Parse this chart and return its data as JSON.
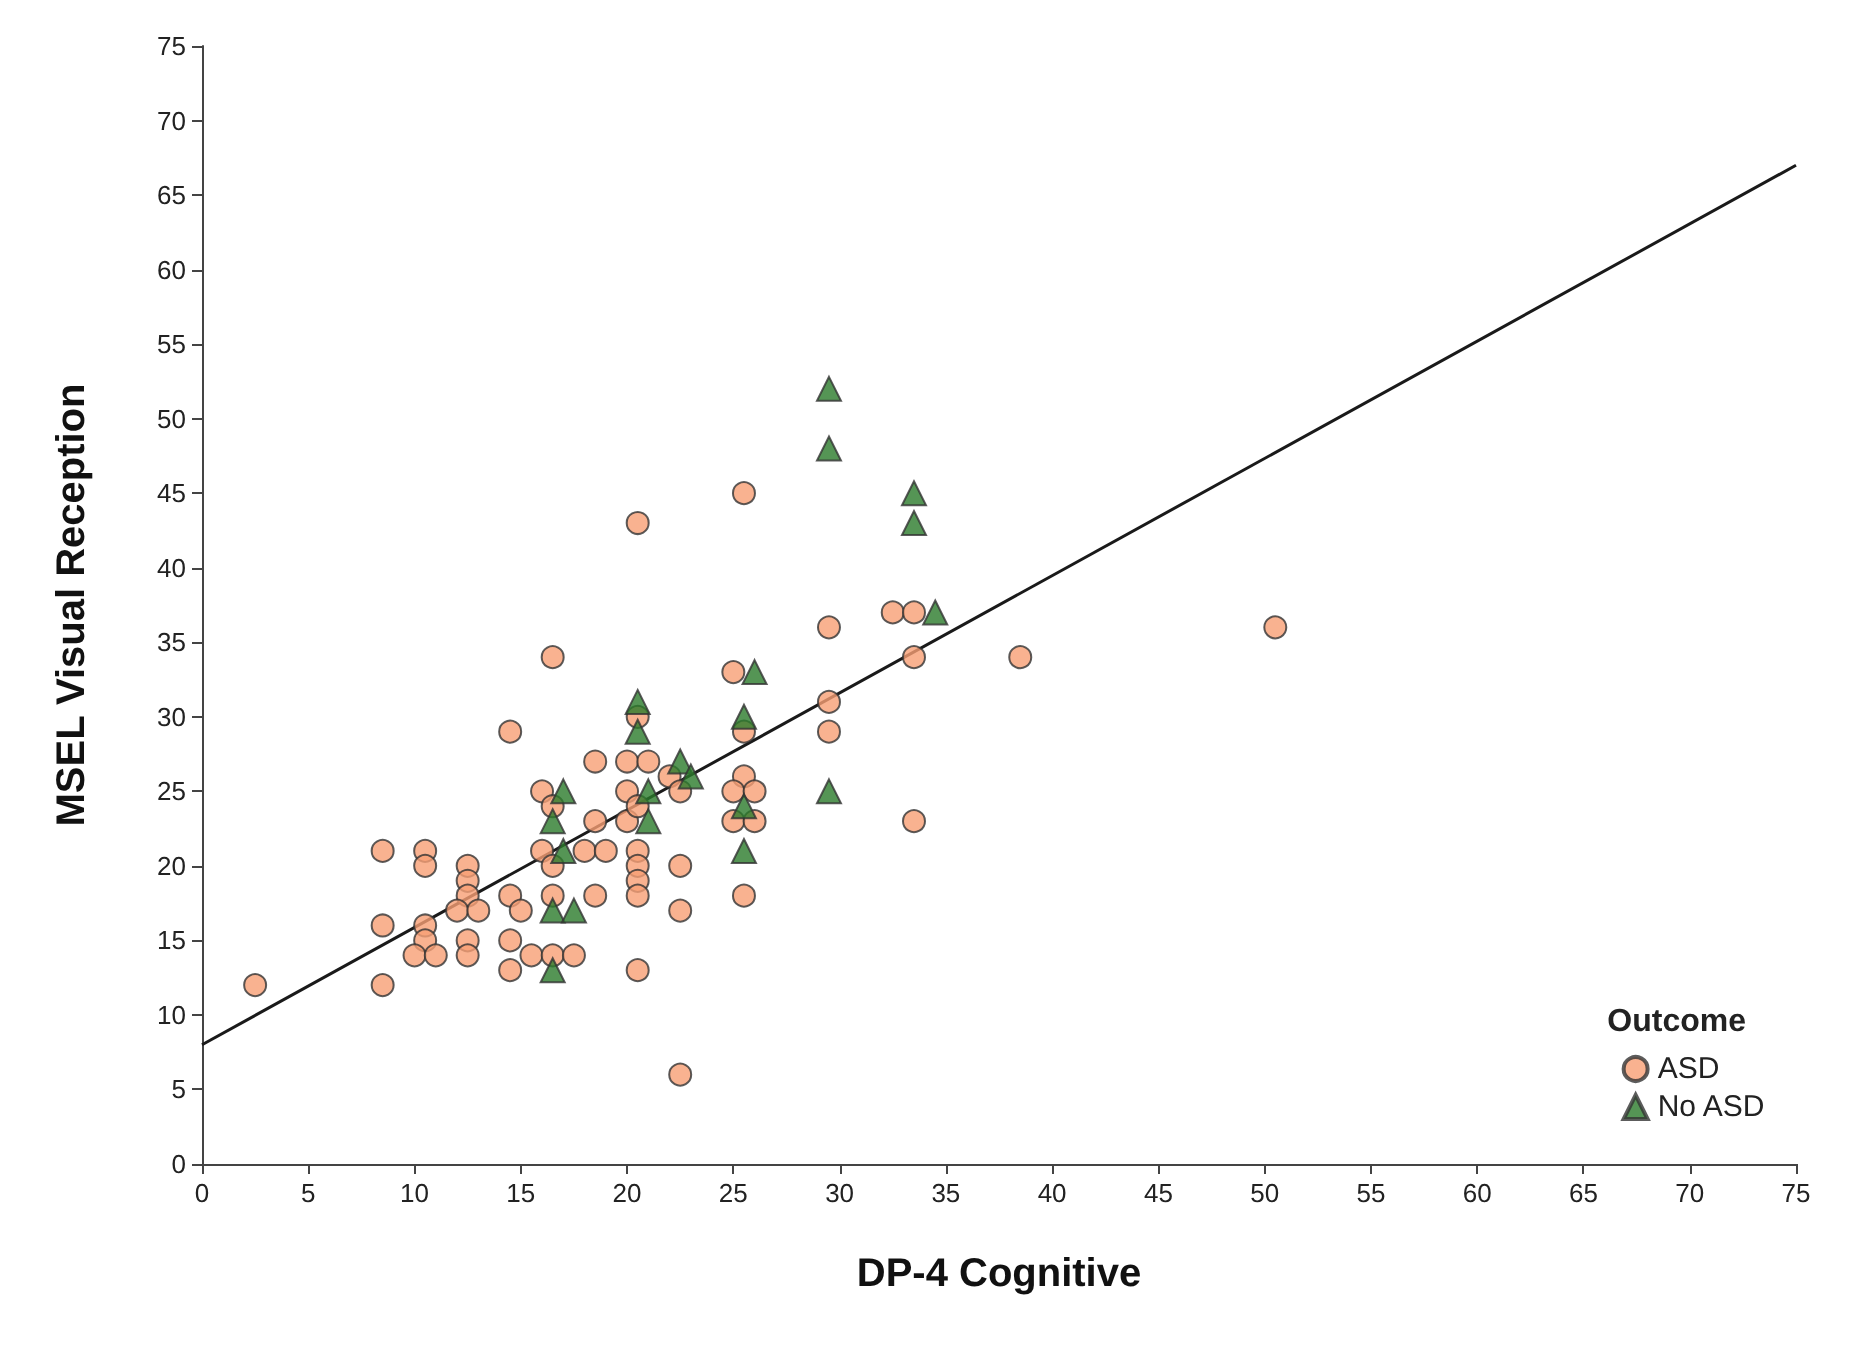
{
  "chart_data": {
    "type": "scatter",
    "xlabel": "DP-4 Cognitive",
    "ylabel": "MSEL Visual Reception",
    "legend_title": "Outcome",
    "legend": "bottom right",
    "grid": false,
    "xlim": [
      0,
      75
    ],
    "ylim": [
      0,
      75
    ],
    "xticks": [
      0,
      5,
      10,
      15,
      20,
      25,
      30,
      35,
      40,
      45,
      50,
      55,
      60,
      65,
      70,
      75
    ],
    "yticks": [
      0,
      5,
      10,
      15,
      20,
      25,
      30,
      35,
      40,
      45,
      50,
      55,
      60,
      65,
      70,
      75
    ],
    "series": [
      {
        "name": "ASD",
        "color": "#f79f74",
        "marker": "circle",
        "x": [
          2.5,
          8.5,
          8.5,
          8.5,
          10.5,
          10.5,
          10.5,
          10.5,
          10,
          11,
          12.5,
          12.5,
          12.5,
          12,
          13,
          12.5,
          12.5,
          14.5,
          14.5,
          15,
          14.5,
          14.5,
          15.5,
          16.5,
          17.5,
          16.5,
          16,
          16.5,
          16,
          16.5,
          16.5,
          18,
          19,
          18.5,
          18.5,
          18.5,
          20,
          21,
          20,
          20,
          20.5,
          20.5,
          20.5,
          20.5,
          20.5,
          20.5,
          20.5,
          20.5,
          22,
          22.5,
          22.5,
          22.5,
          22.5,
          25,
          25.5,
          25.5,
          25.5,
          25,
          26,
          25,
          26,
          25.5,
          29.5,
          29.5,
          29.5,
          32.5,
          33.5,
          33.5,
          33.5,
          38.5,
          50.5
        ],
        "values": [
          12,
          21,
          16,
          12,
          21,
          20,
          16,
          15,
          14,
          14,
          20,
          19,
          18,
          17,
          17,
          15,
          14,
          29,
          18,
          17,
          15,
          13,
          14,
          14,
          14,
          34,
          25,
          24,
          21,
          20,
          18,
          21,
          21,
          27,
          23,
          18,
          27,
          27,
          25,
          23,
          30,
          24,
          21,
          20,
          19,
          18,
          13,
          43,
          26,
          25,
          20,
          17,
          6,
          33,
          45,
          29,
          26,
          25,
          25,
          23,
          23,
          18,
          36,
          31,
          29,
          37,
          37,
          34,
          23,
          34,
          36
        ]
      },
      {
        "name": "No ASD",
        "color": "#2a7a2a",
        "marker": "triangle",
        "x": [
          29.5,
          29.5,
          33.5,
          33.5,
          34.5,
          26,
          20.5,
          20.5,
          25.5,
          29.5,
          22.5,
          23,
          17,
          16.5,
          21,
          21,
          25.5,
          25.5,
          17,
          16.5,
          17.5,
          16.5
        ],
        "values": [
          52,
          48,
          45,
          43,
          37,
          33,
          31,
          29,
          30,
          25,
          27,
          26,
          25,
          23,
          25,
          23,
          24,
          21,
          21,
          17,
          17,
          13
        ]
      },
      {
        "type": "line",
        "color": "#1a1a1a",
        "marker": "none",
        "x": [
          0,
          75
        ],
        "values": [
          8,
          67
        ]
      }
    ]
  }
}
